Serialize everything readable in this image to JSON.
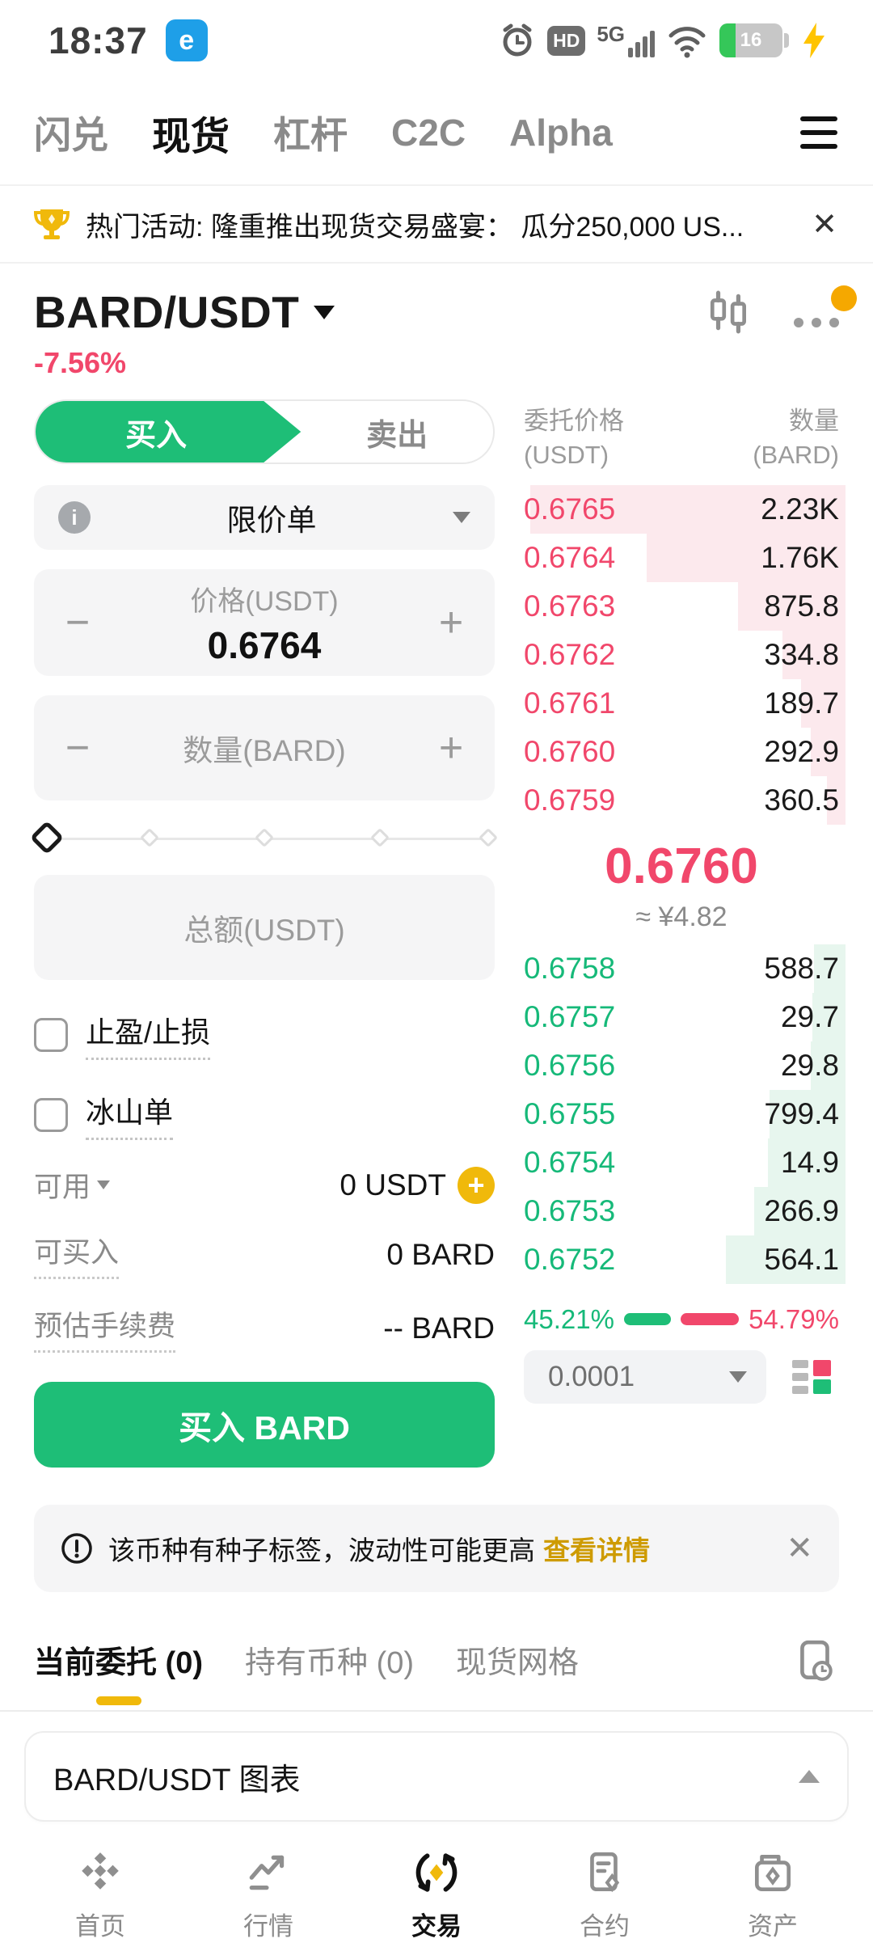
{
  "colors": {
    "green": "#1EBE77",
    "red": "#F1476B",
    "yellow": "#F0B90B",
    "link_gold": "#CE9B00"
  },
  "status_bar": {
    "time": "18:37",
    "hd": "HD",
    "network": "5G",
    "battery": "16",
    "app_letter": "e"
  },
  "top_nav": {
    "items": [
      {
        "label": "闪兑"
      },
      {
        "label": "现货"
      },
      {
        "label": "杠杆"
      },
      {
        "label": "C2C"
      },
      {
        "label": "Alpha"
      }
    ]
  },
  "promo": {
    "text": "热门活动: 隆重推出现货交易盛宴： 瓜分250,000 US...",
    "close": "✕"
  },
  "pair": {
    "symbol": "BARD/USDT",
    "change": "-7.56%"
  },
  "trade": {
    "buy_tab": "买入",
    "sell_tab": "卖出",
    "order_type": "限价单",
    "info_glyph": "i",
    "minus": "−",
    "plus": "+",
    "price_label": "价格(USDT)",
    "price_value": "0.6764",
    "amount_label": "数量(BARD)",
    "total_label": "总额(USDT)",
    "checkbox_tpsl": "止盈/止损",
    "checkbox_iceberg": "冰山单",
    "available_label": "可用",
    "available_value": "0 USDT",
    "can_buy_label": "可买入",
    "can_buy_value": "0 BARD",
    "fee_label": "预估手续费",
    "fee_value": "-- BARD",
    "submit_label": "买入 BARD"
  },
  "orderbook": {
    "header_price_1": "委托价格",
    "header_price_2": "(USDT)",
    "header_amount_1": "数量",
    "header_amount_2": "(BARD)",
    "asks": [
      {
        "price": "0.6765",
        "amount": "2.23K",
        "depth": 100
      },
      {
        "price": "0.6764",
        "amount": "1.76K",
        "depth": 63
      },
      {
        "price": "0.6763",
        "amount": "875.8",
        "depth": 34
      },
      {
        "price": "0.6762",
        "amount": "334.8",
        "depth": 20
      },
      {
        "price": "0.6761",
        "amount": "189.7",
        "depth": 14
      },
      {
        "price": "0.6760",
        "amount": "292.9",
        "depth": 11
      },
      {
        "price": "0.6759",
        "amount": "360.5",
        "depth": 6
      }
    ],
    "last_price": "0.6760",
    "fiat_value": "≈ ¥4.82",
    "bids": [
      {
        "price": "0.6758",
        "amount": "588.7",
        "depth": 10
      },
      {
        "price": "0.6757",
        "amount": "29.7",
        "depth": 10.5
      },
      {
        "price": "0.6756",
        "amount": "29.8",
        "depth": 11
      },
      {
        "price": "0.6755",
        "amount": "799.4",
        "depth": 24
      },
      {
        "price": "0.6754",
        "amount": "14.9",
        "depth": 24.5
      },
      {
        "price": "0.6753",
        "amount": "266.9",
        "depth": 29
      },
      {
        "price": "0.6752",
        "amount": "564.1",
        "depth": 38
      }
    ],
    "buy_ratio": "45.21%",
    "sell_ratio": "54.79%",
    "precision": "0.0001"
  },
  "warning": {
    "text": "该币种有种子标签，波动性可能更高",
    "link": "查看详情",
    "close": "✕"
  },
  "orders_tabs": [
    {
      "label": "当前委托 (0)"
    },
    {
      "label": "持有币种 (0)"
    },
    {
      "label": "现货网格"
    }
  ],
  "chart_panel": {
    "title": "BARD/USDT 图表"
  },
  "bottom_nav": [
    {
      "label": "首页"
    },
    {
      "label": "行情"
    },
    {
      "label": "交易"
    },
    {
      "label": "合约"
    },
    {
      "label": "资产"
    }
  ]
}
